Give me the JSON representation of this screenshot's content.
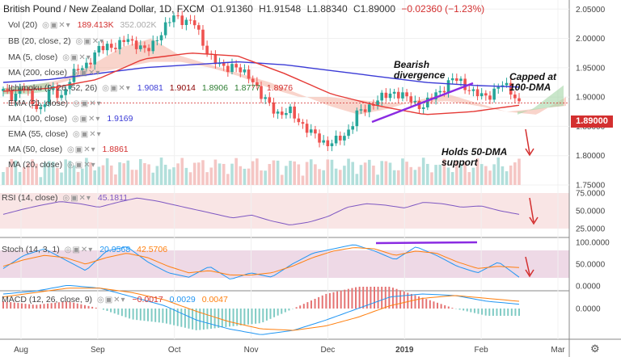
{
  "header": {
    "title": "British Pound / New Zealand Dollar, 1D, FXCM",
    "open": "O1.91360",
    "high": "H1.91548",
    "low": "L1.88340",
    "close": "C1.89000",
    "change": "−0.02360 (−1.23%)"
  },
  "indicators": {
    "vol": {
      "label": "Vol (20)",
      "value": "189.413K",
      "value2": "352.002K"
    },
    "bb": {
      "label": "BB (20, close, 2)"
    },
    "ma5": {
      "label": "MA (5, close)"
    },
    "ma200": {
      "label": "MA (200, close)"
    },
    "ichimoku": {
      "label": "Ichimoku (9, 26, 52, 26)",
      "v1": "1.9081",
      "v2": "1.9014",
      "v3": "1.8906",
      "v4": "1.8777",
      "v5": "1.8976"
    },
    "ema21": {
      "label": "EMA (21, close)"
    },
    "ma100": {
      "label": "MA (100, close)",
      "value": "1.9169"
    },
    "ema55": {
      "label": "EMA (55, close)"
    },
    "ma50": {
      "label": "MA (50, close)",
      "value": "1.8861"
    },
    "ma20": {
      "label": "MA (20, close)"
    }
  },
  "annotations": {
    "bearish": "Bearish\ndivergence",
    "capped": "Capped at\n100-DMA",
    "holds": "Holds 50-DMA\nsupport"
  },
  "price_label": "1.89000",
  "panels": {
    "rsi": {
      "label": "RSI (14, close)",
      "value": "45.1811"
    },
    "stoch": {
      "label": "Stoch (14, 3, 1)",
      "k": "20.9568",
      "d": "42.5706"
    },
    "macd": {
      "label": "MACD (12, 26, close, 9)",
      "hist": "−0.0017",
      "macd": "0.0029",
      "signal": "0.0047"
    }
  },
  "colors": {
    "up": "#26a69a",
    "down": "#ef5350",
    "ma100": "#3b3bd6",
    "ma50": "#e53935",
    "cloud_bear": "#f4b0a0",
    "cloud_bull": "#a5d6a7",
    "divergence": "#8a2be2",
    "rsi": "#7e57c2",
    "stoch_k": "#2196f3",
    "stoch_d": "#ff7f0e",
    "arrow": "#d32f2f"
  },
  "chart_data": {
    "type": "candlestick",
    "symbol": "GBP/NZD",
    "timeframe": "1D",
    "y_ticks": [
      "2.05000",
      "2.00000",
      "1.95000",
      "1.90000",
      "1.85000",
      "1.80000",
      "1.75000"
    ],
    "x_labels": [
      "Aug",
      "Sep",
      "Oct",
      "Nov",
      "Dec",
      "2019",
      "Feb",
      "Mar"
    ],
    "ylim": [
      1.75,
      2.06
    ],
    "close_path": [
      1.91,
      1.9,
      1.92,
      1.89,
      1.88,
      1.915,
      1.9,
      1.93,
      1.95,
      1.96,
      1.98,
      1.99,
      1.985,
      2.0,
      1.99,
      1.975,
      2.0,
      2.02,
      2.04,
      2.03,
      2.025,
      1.99,
      1.96,
      1.95,
      1.955,
      1.94,
      1.935,
      1.9,
      1.885,
      1.87,
      1.875,
      1.86,
      1.84,
      1.83,
      1.82,
      1.825,
      1.84,
      1.87,
      1.88,
      1.895,
      1.9,
      1.91,
      1.9,
      1.89,
      1.885,
      1.9,
      1.915,
      1.93,
      1.925,
      1.91,
      1.9,
      1.905,
      1.92,
      1.915,
      1.89
    ],
    "ma100_path": [
      1.925,
      1.93,
      1.94,
      1.95,
      1.955,
      1.96,
      1.955,
      1.945,
      1.935,
      1.925,
      1.92,
      1.917
    ],
    "ma50_path": [
      1.91,
      1.915,
      1.93,
      1.965,
      1.975,
      1.97,
      1.94,
      1.905,
      1.885,
      1.87,
      1.875,
      1.886
    ],
    "rsi": {
      "ylim": [
        25,
        75
      ],
      "ticks": [
        "75.0000",
        "50.0000",
        "25.0000"
      ],
      "values": [
        45,
        52,
        58,
        63,
        60,
        55,
        62,
        68,
        64,
        58,
        52,
        46,
        40,
        44,
        36,
        30,
        34,
        42,
        55,
        60,
        58,
        54,
        62,
        60,
        55,
        57,
        50,
        45
      ]
    },
    "stoch": {
      "ylim": [
        0,
        100
      ],
      "ticks": [
        "100.0000",
        "50.0000",
        "0.0000"
      ],
      "k": [
        40,
        70,
        85,
        60,
        35,
        80,
        90,
        55,
        30,
        20,
        45,
        15,
        30,
        20,
        50,
        75,
        85,
        95,
        80,
        60,
        90,
        70,
        45,
        30,
        55,
        20
      ],
      "d": [
        45,
        60,
        70,
        65,
        50,
        65,
        75,
        65,
        45,
        30,
        35,
        25,
        25,
        30,
        45,
        65,
        80,
        88,
        85,
        70,
        80,
        75,
        55,
        40,
        45,
        42
      ]
    },
    "macd": {
      "ticks": [
        "0.0000"
      ],
      "macd": [
        0.01,
        0.012,
        0.016,
        0.014,
        0.008,
        0.002,
        -0.008,
        -0.014,
        -0.018,
        -0.015,
        -0.008,
        0.0,
        0.008,
        0.01,
        0.009,
        0.005,
        0.003
      ],
      "signal": [
        0.008,
        0.011,
        0.014,
        0.014,
        0.011,
        0.006,
        -0.002,
        -0.009,
        -0.014,
        -0.015,
        -0.012,
        -0.006,
        0.002,
        0.007,
        0.009,
        0.007,
        0.005
      ]
    }
  }
}
